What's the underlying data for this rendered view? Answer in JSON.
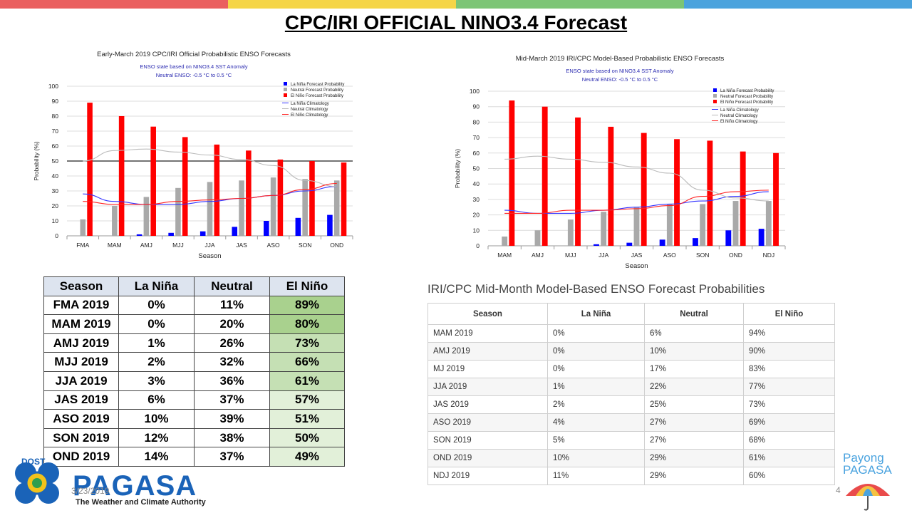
{
  "slide": {
    "title": "CPC/IRI OFFICIAL NINO3.4 Forecast",
    "date": "3/23/2019",
    "page_number": "4",
    "topbar_colors": [
      "#ea5f5f",
      "#f5d547",
      "#7cc576",
      "#4ba3dd"
    ]
  },
  "branding": {
    "dost": "DOST",
    "logo_text": "PAGASA",
    "logo_subtitle": "The Weather and Climate Authority",
    "payong_line1": "Payong",
    "payong_line2": "PAGASA"
  },
  "legend_labels": {
    "lanina_prob": "La Niña Forecast Probability",
    "neutral_prob": "Neutral Forecast Probability",
    "elnino_prob": "El Niño Forecast Probability",
    "lanina_clim": "La Niña Climatology",
    "neutral_clim": "Neutral Climatology",
    "elnino_clim": "El Niño Climatology"
  },
  "colors": {
    "lanina": "#0000ff",
    "neutral": "#a9a9a9",
    "elnino": "#ff0000",
    "lanina_clim": "#3333ff",
    "neutral_clim": "#bbbbbb",
    "elnino_clim": "#ff2020"
  },
  "chart_data": [
    {
      "type": "bar",
      "title": "Early-March 2019 CPC/IRI Official Probabilistic ENSO Forecasts",
      "subtitle1": "ENSO state based on NINO3.4 SST Anomaly",
      "subtitle2": "Neutral ENSO: -0.5 °C to 0.5 °C",
      "xlabel": "Season",
      "ylabel": "Probability (%)",
      "ylim": [
        0,
        100
      ],
      "yticks": [
        0,
        10,
        20,
        30,
        40,
        50,
        60,
        70,
        80,
        90,
        100
      ],
      "reference_line": 50,
      "categories": [
        "FMA",
        "MAM",
        "AMJ",
        "MJJ",
        "JJA",
        "JAS",
        "ASO",
        "SON",
        "OND"
      ],
      "series": [
        {
          "name": "La Niña Forecast Probability",
          "values": [
            0,
            0,
            1,
            2,
            3,
            6,
            10,
            12,
            14
          ]
        },
        {
          "name": "Neutral Forecast Probability",
          "values": [
            11,
            20,
            26,
            32,
            36,
            37,
            39,
            38,
            37
          ]
        },
        {
          "name": "El Niño Forecast Probability",
          "values": [
            89,
            80,
            73,
            66,
            61,
            57,
            51,
            50,
            49
          ]
        }
      ],
      "climatology": [
        {
          "name": "La Niña Climatology",
          "values": [
            28,
            23,
            21,
            21,
            23,
            25,
            27,
            30,
            33
          ]
        },
        {
          "name": "Neutral Climatology",
          "values": [
            50,
            57,
            58,
            56,
            54,
            51,
            47,
            37,
            33
          ]
        },
        {
          "name": "El Niño Climatology",
          "values": [
            23,
            21,
            21,
            23,
            24,
            25,
            27,
            31,
            35
          ]
        }
      ]
    },
    {
      "type": "bar",
      "title": "Mid-March 2019 IRI/CPC Model-Based Probabilistic ENSO Forecasts",
      "subtitle1": "ENSO state based on NINO3.4 SST Anomaly",
      "subtitle2": "Neutral ENSO: -0.5 °C to 0.5 °C",
      "xlabel": "Season",
      "ylabel": "Probability (%)",
      "ylim": [
        0,
        100
      ],
      "yticks": [
        0,
        10,
        20,
        30,
        40,
        50,
        60,
        70,
        80,
        90,
        100
      ],
      "categories": [
        "MAM",
        "AMJ",
        "MJJ",
        "JJA",
        "JAS",
        "ASO",
        "SON",
        "OND",
        "NDJ"
      ],
      "series": [
        {
          "name": "La Niña Forecast Probability",
          "values": [
            0,
            0,
            0,
            1,
            2,
            4,
            5,
            10,
            11
          ]
        },
        {
          "name": "Neutral Forecast Probability",
          "values": [
            6,
            10,
            17,
            22,
            25,
            27,
            27,
            29,
            29
          ]
        },
        {
          "name": "El Niño Forecast Probability",
          "values": [
            94,
            90,
            83,
            77,
            73,
            69,
            68,
            61,
            60
          ]
        }
      ],
      "climatology": [
        {
          "name": "La Niña Climatology",
          "values": [
            23,
            21,
            21,
            23,
            25,
            27,
            29,
            32,
            35
          ]
        },
        {
          "name": "Neutral Climatology",
          "values": [
            56,
            58,
            56,
            54,
            51,
            47,
            36,
            31,
            29
          ]
        },
        {
          "name": "El Niño Climatology",
          "values": [
            21,
            21,
            23,
            23,
            24,
            26,
            32,
            35,
            36
          ]
        }
      ]
    }
  ],
  "table1": {
    "headers": [
      "Season",
      "La Niña",
      "Neutral",
      "El Niño"
    ],
    "rows": [
      [
        "FMA 2019",
        "0%",
        "11%",
        "89%"
      ],
      [
        "MAM 2019",
        "0%",
        "20%",
        "80%"
      ],
      [
        "AMJ 2019",
        "1%",
        "26%",
        "73%"
      ],
      [
        "MJJ 2019",
        "2%",
        "32%",
        "66%"
      ],
      [
        "JJA 2019",
        "3%",
        "36%",
        "61%"
      ],
      [
        "JAS 2019",
        "6%",
        "37%",
        "57%"
      ],
      [
        "ASO 2019",
        "10%",
        "39%",
        "51%"
      ],
      [
        "SON 2019",
        "12%",
        "38%",
        "50%"
      ],
      [
        "OND 2019",
        "14%",
        "37%",
        "49%"
      ]
    ],
    "highlight_colors": [
      "#a9d18e",
      "#a9d18e",
      "#c5e0b4",
      "#c5e0b4",
      "#c5e0b4",
      "#e2f0d9",
      "#e2f0d9",
      "#e2f0d9",
      "#e2f0d9"
    ]
  },
  "table2": {
    "title": "IRI/CPC Mid-Month Model-Based ENSO Forecast Probabilities",
    "headers": [
      "Season",
      "La Niña",
      "Neutral",
      "El Niño"
    ],
    "rows": [
      [
        "MAM 2019",
        "0%",
        "6%",
        "94%"
      ],
      [
        "AMJ 2019",
        "0%",
        "10%",
        "90%"
      ],
      [
        "MJ 2019",
        "0%",
        "17%",
        "83%"
      ],
      [
        "JJA 2019",
        "1%",
        "22%",
        "77%"
      ],
      [
        "JAS 2019",
        "2%",
        "25%",
        "73%"
      ],
      [
        "ASO 2019",
        "4%",
        "27%",
        "69%"
      ],
      [
        "SON 2019",
        "5%",
        "27%",
        "68%"
      ],
      [
        "OND 2019",
        "10%",
        "29%",
        "61%"
      ],
      [
        "NDJ 2019",
        "11%",
        "29%",
        "60%"
      ]
    ]
  }
}
